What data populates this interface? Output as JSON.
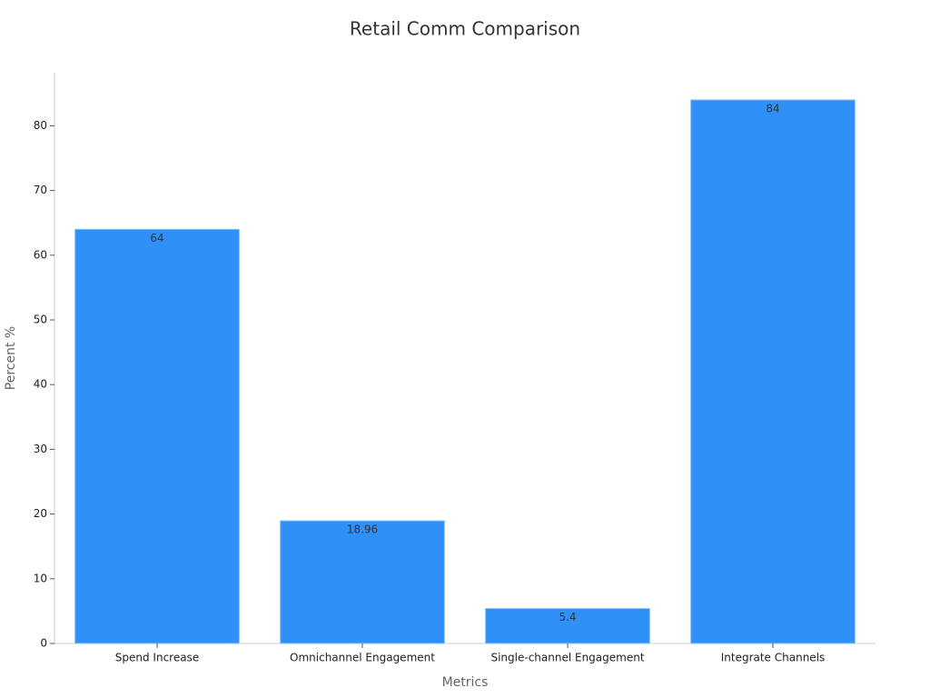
{
  "chart_data": {
    "type": "bar",
    "title": "Retail Comm Comparison",
    "x_label": "Metrics",
    "y_label": "Percent %",
    "categories": [
      "Spend Increase",
      "Omnichannel Engagement",
      "Single-channel Engagement",
      "Integrate Channels"
    ],
    "values": [
      64,
      18.96,
      5.4,
      84
    ],
    "color": "#2f91f7",
    "ylim": [
      0,
      88.2
    ],
    "yticks": [
      0,
      10,
      20,
      30,
      40,
      50,
      60,
      70,
      80
    ],
    "grid": false
  }
}
